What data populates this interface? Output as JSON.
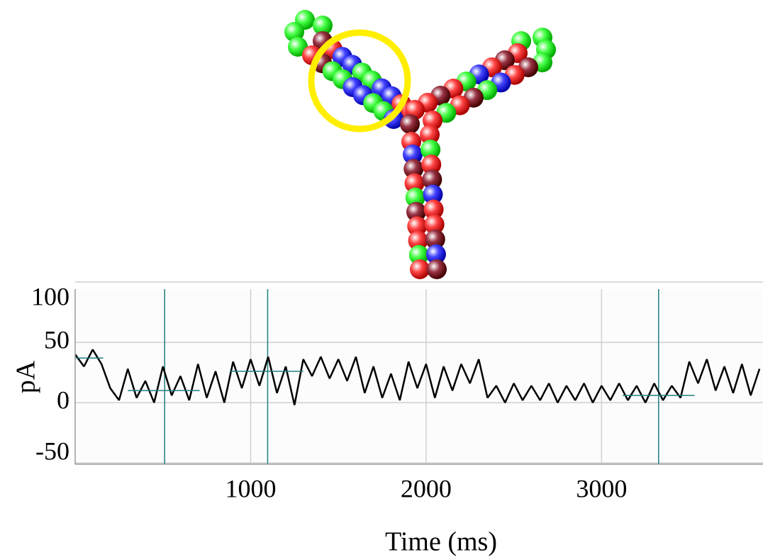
{
  "chart_data": {
    "type": "line",
    "x_label": "Time (ms)",
    "y_label": "pA",
    "xlim": [
      0,
      3920
    ],
    "ylim": [
      -51,
      100
    ],
    "xticks": [
      1000,
      2000,
      3000
    ],
    "yticks": [
      100,
      50,
      0,
      -50
    ],
    "grid": true,
    "series": [
      {
        "color": "#000000",
        "x": [
          0,
          50,
          100,
          150,
          200,
          250,
          300,
          350,
          400,
          450,
          500,
          550,
          600,
          650,
          700,
          750,
          800,
          850,
          900,
          950,
          1000,
          1050,
          1100,
          1150,
          1200,
          1250,
          1300,
          1350,
          1400,
          1450,
          1500,
          1550,
          1600,
          1650,
          1700,
          1750,
          1800,
          1850,
          1900,
          1950,
          2000,
          2050,
          2100,
          2150,
          2200,
          2250,
          2300,
          2350,
          2400,
          2450,
          2500,
          2550,
          2600,
          2650,
          2700,
          2750,
          2800,
          2850,
          2900,
          2950,
          3000,
          3050,
          3100,
          3150,
          3200,
          3250,
          3300,
          3350,
          3400,
          3450,
          3500,
          3550,
          3600,
          3650,
          3700,
          3750,
          3800,
          3850,
          3900
        ],
        "values": [
          40,
          30,
          44,
          32,
          12,
          2,
          28,
          4,
          18,
          0,
          30,
          6,
          22,
          2,
          32,
          4,
          26,
          0,
          34,
          12,
          36,
          14,
          38,
          8,
          30,
          -2,
          36,
          22,
          38,
          20,
          36,
          18,
          38,
          8,
          30,
          4,
          24,
          2,
          34,
          12,
          32,
          4,
          30,
          10,
          32,
          16,
          36,
          4,
          14,
          0,
          16,
          2,
          14,
          2,
          16,
          0,
          14,
          2,
          16,
          0,
          14,
          2,
          16,
          2,
          14,
          0,
          16,
          2,
          14,
          4,
          34,
          16,
          36,
          10,
          30,
          8,
          32,
          6,
          28
        ]
      }
    ],
    "cursor_color": "#1f7f7f",
    "cursors": [
      510,
      1097,
      3325
    ],
    "levels": [
      {
        "x": [
          0,
          160
        ],
        "y": 37
      },
      {
        "x": [
          300,
          710
        ],
        "y": 10
      },
      {
        "x": [
          880,
          1300
        ],
        "y": 26
      },
      {
        "x": [
          3120,
          3530
        ],
        "y": 6
      }
    ]
  }
}
